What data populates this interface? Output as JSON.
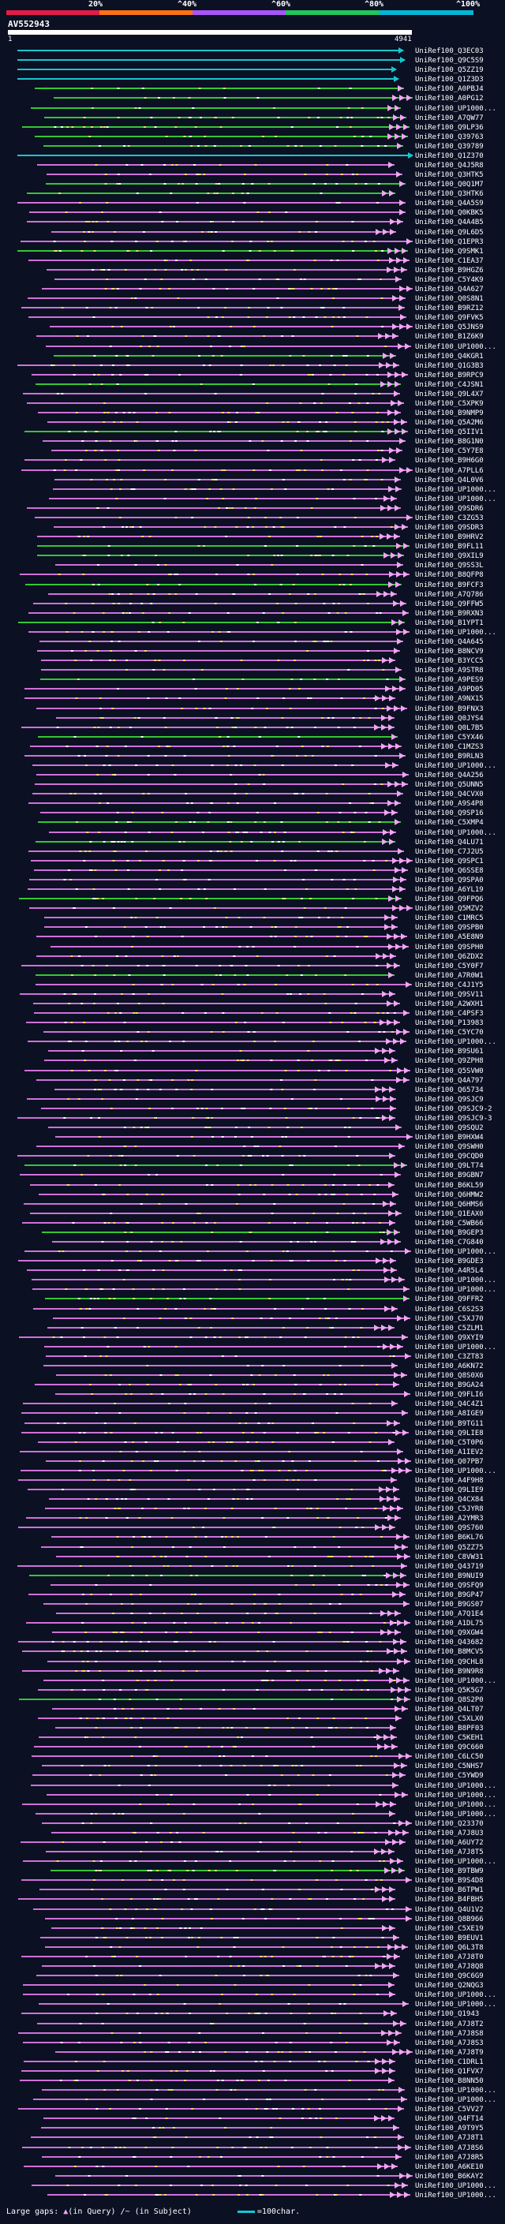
{
  "header": {
    "query_id": "AV552943",
    "start": "1",
    "end": "4941",
    "scale_labels": [
      "20%",
      "^40%",
      "^60%",
      "^80%",
      "^100%"
    ],
    "scale_colors": [
      "#e11d48",
      "#f97316",
      "#a855f7",
      "#22c55e",
      "#06b6d4"
    ]
  },
  "colors": {
    "cyan": "#17c6cf",
    "green": "#34c634",
    "magenta": "#d070d8",
    "orange": "#f59e0b",
    "yellow": "#e9e65b",
    "pink": "#f0a6f0"
  },
  "hits": [
    {
      "name": "UniRef100_Q3EC03",
      "color": "cyan"
    },
    {
      "name": "UniRef100_Q9C5S9",
      "color": "cyan"
    },
    {
      "name": "UniRef100_Q5ZZ19",
      "color": "cyan"
    },
    {
      "name": "UniRef100_Q1Z3D3",
      "color": "cyan"
    },
    {
      "name": "UniRef100_A0PBJ4",
      "color": "green"
    },
    {
      "name": "UniRef100_A0PG12",
      "color": "green"
    },
    {
      "name": "UniRef100_UP1000...",
      "color": "green"
    },
    {
      "name": "UniRef100_A7QW77",
      "color": "green"
    },
    {
      "name": "UniRef100_Q9LP36",
      "color": "green"
    },
    {
      "name": "UniRef100_Q39763",
      "color": "green"
    },
    {
      "name": "UniRef100_Q39789",
      "color": "green"
    },
    {
      "name": "UniRef100_Q1Z370",
      "color": "cyan"
    },
    {
      "name": "UniRef100_Q4J5R8",
      "color": "magenta"
    },
    {
      "name": "UniRef100_Q3HTK5",
      "color": "magenta"
    },
    {
      "name": "UniRef100_Q0Q1M7",
      "color": "green"
    },
    {
      "name": "UniRef100_Q3HTK6",
      "color": "green"
    },
    {
      "name": "UniRef100_Q4A5S9",
      "color": "magenta"
    },
    {
      "name": "UniRef100_Q0KBK5",
      "color": "magenta"
    },
    {
      "name": "UniRef100_Q4A4B5",
      "color": "magenta"
    },
    {
      "name": "UniRef100_Q9L6D5",
      "color": "magenta"
    },
    {
      "name": "UniRef100_Q1EPR3",
      "color": "magenta"
    },
    {
      "name": "UniRef100_Q9SMK1",
      "color": "green"
    },
    {
      "name": "UniRef100_C1EA37",
      "color": "magenta"
    },
    {
      "name": "UniRef100_B9HGZ6",
      "color": "magenta"
    },
    {
      "name": "UniRef100_C5Y4K9",
      "color": "magenta"
    },
    {
      "name": "UniRef100_Q4A627",
      "color": "magenta"
    },
    {
      "name": "UniRef100_Q0S8N1",
      "color": "magenta"
    },
    {
      "name": "UniRef100_B9RZ12",
      "color": "magenta"
    },
    {
      "name": "UniRef100_Q9FVK5",
      "color": "magenta"
    },
    {
      "name": "UniRef100_Q5JNS9",
      "color": "magenta"
    },
    {
      "name": "UniRef100_B1Z6K9",
      "color": "magenta"
    },
    {
      "name": "UniRef100_UP1000...",
      "color": "magenta"
    },
    {
      "name": "UniRef100_Q4KGR1",
      "color": "green"
    },
    {
      "name": "UniRef100_Q1G3B3",
      "color": "magenta"
    },
    {
      "name": "UniRef100_B9RPC9",
      "color": "magenta"
    },
    {
      "name": "UniRef100_C4JSN1",
      "color": "green"
    },
    {
      "name": "UniRef100_Q9L4X7",
      "color": "magenta"
    },
    {
      "name": "UniRef100_C5XPK9",
      "color": "magenta"
    },
    {
      "name": "UniRef100_B9NMP9",
      "color": "magenta"
    },
    {
      "name": "UniRef100_Q5A2M6",
      "color": "magenta"
    },
    {
      "name": "UniRef100_Q5IIV1",
      "color": "green"
    },
    {
      "name": "UniRef100_B8G1N0",
      "color": "magenta"
    },
    {
      "name": "UniRef100_C5Y7E8",
      "color": "magenta"
    },
    {
      "name": "UniRef100_B9H6G0",
      "color": "magenta"
    },
    {
      "name": "UniRef100_A7PLL6",
      "color": "magenta"
    },
    {
      "name": "UniRef100_Q4L0V6",
      "color": "magenta"
    },
    {
      "name": "UniRef100_UP1000...",
      "color": "magenta"
    },
    {
      "name": "UniRef100_UP1000...",
      "color": "magenta"
    },
    {
      "name": "UniRef100_Q9SDR6",
      "color": "magenta"
    },
    {
      "name": "UniRef100_C3ZG53",
      "color": "magenta"
    },
    {
      "name": "UniRef100_Q9SDR3",
      "color": "magenta"
    },
    {
      "name": "UniRef100_B9HRV2",
      "color": "magenta"
    },
    {
      "name": "UniRef100_B9FL11",
      "color": "green"
    },
    {
      "name": "UniRef100_Q9XIL9",
      "color": "green"
    },
    {
      "name": "UniRef100_Q9SS3L",
      "color": "magenta"
    },
    {
      "name": "UniRef100_B8QFP8",
      "color": "magenta"
    },
    {
      "name": "UniRef100_B9FCF3",
      "color": "green"
    },
    {
      "name": "UniRef100_A7Q786",
      "color": "magenta"
    },
    {
      "name": "UniRef100_Q9FFW5",
      "color": "magenta"
    },
    {
      "name": "UniRef100_B9RXN3",
      "color": "magenta"
    },
    {
      "name": "UniRef100_B1YPT1",
      "color": "green"
    },
    {
      "name": "UniRef100_UP1000...",
      "color": "magenta"
    },
    {
      "name": "UniRef100_Q4A645",
      "color": "magenta"
    },
    {
      "name": "UniRef100_B8NCV9",
      "color": "magenta"
    },
    {
      "name": "UniRef100_B3YCC5",
      "color": "magenta"
    },
    {
      "name": "UniRef100_A9STR8",
      "color": "magenta"
    },
    {
      "name": "UniRef100_A9PES9",
      "color": "green"
    },
    {
      "name": "UniRef100_A9PD05",
      "color": "magenta"
    },
    {
      "name": "UniRef100_A9NX15",
      "color": "magenta"
    },
    {
      "name": "UniRef100_B9FNX3",
      "color": "magenta"
    },
    {
      "name": "UniRef100_Q0JYS4",
      "color": "magenta"
    },
    {
      "name": "UniRef100_Q0L7B5",
      "color": "magenta"
    },
    {
      "name": "UniRef100_C5YX46",
      "color": "green"
    },
    {
      "name": "UniRef100_C1MZS3",
      "color": "magenta"
    },
    {
      "name": "UniRef100_B9RLN3",
      "color": "magenta"
    },
    {
      "name": "UniRef100_UP1000...",
      "color": "magenta"
    },
    {
      "name": "UniRef100_Q4A256",
      "color": "magenta"
    },
    {
      "name": "UniRef100_Q5UNN5",
      "color": "magenta"
    },
    {
      "name": "UniRef100_Q4CVX0",
      "color": "magenta"
    },
    {
      "name": "UniRef100_A9S4P8",
      "color": "magenta"
    },
    {
      "name": "UniRef100_Q9SP16",
      "color": "magenta"
    },
    {
      "name": "UniRef100_C5XMP4",
      "color": "green"
    },
    {
      "name": "UniRef100_UP1000...",
      "color": "magenta"
    },
    {
      "name": "UniRef100_Q4LU71",
      "color": "green"
    },
    {
      "name": "UniRef100_C7J2U5",
      "color": "magenta"
    },
    {
      "name": "UniRef100_Q9SPC1",
      "color": "magenta"
    },
    {
      "name": "UniRef100_Q6SSE8",
      "color": "magenta"
    },
    {
      "name": "UniRef100_Q9SPA0",
      "color": "magenta"
    },
    {
      "name": "UniRef100_A6YL19",
      "color": "magenta"
    },
    {
      "name": "UniRef100_Q9FPQ6",
      "color": "green"
    },
    {
      "name": "UniRef100_Q5MZV2",
      "color": "magenta"
    },
    {
      "name": "UniRef100_C1MRC5",
      "color": "magenta"
    },
    {
      "name": "UniRef100_Q9SPB0",
      "color": "magenta"
    },
    {
      "name": "UniRef100_A5E8N9",
      "color": "magenta"
    },
    {
      "name": "UniRef100_Q9SPH0",
      "color": "magenta"
    },
    {
      "name": "UniRef100_Q6ZDX2",
      "color": "magenta"
    },
    {
      "name": "UniRef100_C5Y0F7",
      "color": "magenta"
    },
    {
      "name": "UniRef100_A7R0W1",
      "color": "green"
    },
    {
      "name": "UniRef100_C4J1Y5",
      "color": "magenta"
    },
    {
      "name": "UniRef100_Q9SV11",
      "color": "magenta"
    },
    {
      "name": "UniRef100_A2WXH1",
      "color": "magenta"
    },
    {
      "name": "UniRef100_C4PSF3",
      "color": "magenta"
    },
    {
      "name": "UniRef100_P13983",
      "color": "magenta"
    },
    {
      "name": "UniRef100_C5YC70",
      "color": "magenta"
    },
    {
      "name": "UniRef100_UP1000...",
      "color": "magenta"
    },
    {
      "name": "UniRef100_B9SU61",
      "color": "magenta"
    },
    {
      "name": "UniRef100_Q9ZPH8",
      "color": "magenta"
    },
    {
      "name": "UniRef100_Q5SVW0",
      "color": "magenta"
    },
    {
      "name": "UniRef100_Q4A797",
      "color": "magenta"
    },
    {
      "name": "UniRef100_Q65734",
      "color": "magenta"
    },
    {
      "name": "UniRef100_Q9SJC9",
      "color": "magenta"
    },
    {
      "name": "UniRef100_Q9SJC9-2",
      "color": "magenta"
    },
    {
      "name": "UniRef100_Q9SJC9-3",
      "color": "magenta"
    },
    {
      "name": "UniRef100_Q9SQU2",
      "color": "magenta"
    },
    {
      "name": "UniRef100_B9HXW4",
      "color": "magenta"
    },
    {
      "name": "UniRef100_Q9SWH0",
      "color": "magenta"
    },
    {
      "name": "UniRef100_Q9CQD0",
      "color": "magenta"
    },
    {
      "name": "UniRef100_Q9LT74",
      "color": "green"
    },
    {
      "name": "UniRef100_B9GBN7",
      "color": "magenta"
    },
    {
      "name": "UniRef100_B6KL59",
      "color": "magenta"
    },
    {
      "name": "UniRef100_Q6HMW2",
      "color": "magenta"
    },
    {
      "name": "UniRef100_Q6HMS6",
      "color": "magenta"
    },
    {
      "name": "UniRef100_Q1EAX0",
      "color": "magenta"
    },
    {
      "name": "UniRef100_C5WB66",
      "color": "magenta"
    },
    {
      "name": "UniRef100_B9GEP3",
      "color": "green"
    },
    {
      "name": "UniRef100_C7G840",
      "color": "magenta"
    },
    {
      "name": "UniRef100_UP1000...",
      "color": "magenta"
    },
    {
      "name": "UniRef100_B9GDE3",
      "color": "magenta"
    },
    {
      "name": "UniRef100_A4R5L4",
      "color": "magenta"
    },
    {
      "name": "UniRef100_UP1000...",
      "color": "magenta"
    },
    {
      "name": "UniRef100_UP1000...",
      "color": "magenta"
    },
    {
      "name": "UniRef100_Q9FFR2",
      "color": "green"
    },
    {
      "name": "UniRef100_C6S2S3",
      "color": "magenta"
    },
    {
      "name": "UniRef100_C5XJ70",
      "color": "magenta"
    },
    {
      "name": "UniRef100_C5ZLM1",
      "color": "magenta"
    },
    {
      "name": "UniRef100_Q9XYI9",
      "color": "magenta"
    },
    {
      "name": "UniRef100_UP1000...",
      "color": "magenta"
    },
    {
      "name": "UniRef100_C3ZT83",
      "color": "magenta"
    },
    {
      "name": "UniRef100_A6KN72",
      "color": "magenta"
    },
    {
      "name": "UniRef100_Q8S0X6",
      "color": "magenta"
    },
    {
      "name": "UniRef100_B9GA24",
      "color": "magenta"
    },
    {
      "name": "UniRef100_Q9FLI6",
      "color": "magenta"
    },
    {
      "name": "UniRef100_Q4C4Z1",
      "color": "magenta"
    },
    {
      "name": "UniRef100_A8IGE9",
      "color": "magenta"
    },
    {
      "name": "UniRef100_B9TG11",
      "color": "magenta"
    },
    {
      "name": "UniRef100_Q9LIE8",
      "color": "magenta"
    },
    {
      "name": "UniRef100_C5T0P6",
      "color": "magenta"
    },
    {
      "name": "UniRef100_A1IEV2",
      "color": "magenta"
    },
    {
      "name": "UniRef100_Q07PB7",
      "color": "magenta"
    },
    {
      "name": "UniRef100_UP1000...",
      "color": "magenta"
    },
    {
      "name": "UniRef100_A4F9H8",
      "color": "magenta"
    },
    {
      "name": "UniRef100_Q9LIE9",
      "color": "magenta"
    },
    {
      "name": "UniRef100_Q4CX84",
      "color": "magenta"
    },
    {
      "name": "UniRef100_C5JYR8",
      "color": "magenta"
    },
    {
      "name": "UniRef100_A2YMR3",
      "color": "magenta"
    },
    {
      "name": "UniRef100_Q9S760",
      "color": "magenta"
    },
    {
      "name": "UniRef100_B6KL76",
      "color": "magenta"
    },
    {
      "name": "UniRef100_Q5ZZ75",
      "color": "magenta"
    },
    {
      "name": "UniRef100_C8VW31",
      "color": "magenta"
    },
    {
      "name": "UniRef100_Q43719",
      "color": "magenta"
    },
    {
      "name": "UniRef100_B9NUI9",
      "color": "green"
    },
    {
      "name": "UniRef100_Q9SFQ9",
      "color": "magenta"
    },
    {
      "name": "UniRef100_B9GP47",
      "color": "magenta"
    },
    {
      "name": "UniRef100_B9GS07",
      "color": "magenta"
    },
    {
      "name": "UniRef100_A7Q1E4",
      "color": "magenta"
    },
    {
      "name": "UniRef100_A1DL75",
      "color": "magenta"
    },
    {
      "name": "UniRef100_Q9XGW4",
      "color": "magenta"
    },
    {
      "name": "UniRef100_Q43682",
      "color": "magenta"
    },
    {
      "name": "UniRef100_B8MCV5",
      "color": "magenta"
    },
    {
      "name": "UniRef100_Q9CHL8",
      "color": "magenta"
    },
    {
      "name": "UniRef100_B9N9R8",
      "color": "magenta"
    },
    {
      "name": "UniRef100_UP1000...",
      "color": "magenta"
    },
    {
      "name": "UniRef100_Q5K5G7",
      "color": "magenta"
    },
    {
      "name": "UniRef100_Q8S2P0",
      "color": "green"
    },
    {
      "name": "UniRef100_Q4LT07",
      "color": "magenta"
    },
    {
      "name": "UniRef100_C5XLX0",
      "color": "magenta"
    },
    {
      "name": "UniRef100_B8PF03",
      "color": "magenta"
    },
    {
      "name": "UniRef100_C5KEH1",
      "color": "magenta"
    },
    {
      "name": "UniRef100_Q9C660",
      "color": "magenta"
    },
    {
      "name": "UniRef100_C6LC50",
      "color": "magenta"
    },
    {
      "name": "UniRef100_C5NHS7",
      "color": "magenta"
    },
    {
      "name": "UniRef100_C5YWD9",
      "color": "magenta"
    },
    {
      "name": "UniRef100_UP1000...",
      "color": "magenta"
    },
    {
      "name": "UniRef100_UP1000...",
      "color": "magenta"
    },
    {
      "name": "UniRef100_UP1000...",
      "color": "magenta"
    },
    {
      "name": "UniRef100_UP1000...",
      "color": "magenta"
    },
    {
      "name": "UniRef100_Q23370",
      "color": "magenta"
    },
    {
      "name": "UniRef100_A7J8U3",
      "color": "magenta"
    },
    {
      "name": "UniRef100_A6UY72",
      "color": "magenta"
    },
    {
      "name": "UniRef100_A7J8T5",
      "color": "magenta"
    },
    {
      "name": "UniRef100_UP1000...",
      "color": "magenta"
    },
    {
      "name": "UniRef100_B9TBW9",
      "color": "green"
    },
    {
      "name": "UniRef100_B9S4D8",
      "color": "magenta"
    },
    {
      "name": "UniRef100_B6TPW1",
      "color": "magenta"
    },
    {
      "name": "UniRef100_B4FBH5",
      "color": "magenta"
    },
    {
      "name": "UniRef100_Q4U1V2",
      "color": "magenta"
    },
    {
      "name": "UniRef100_Q8B966",
      "color": "magenta"
    },
    {
      "name": "UniRef100_C5XE19",
      "color": "magenta"
    },
    {
      "name": "UniRef100_B9EUV1",
      "color": "magenta"
    },
    {
      "name": "UniRef100_Q6L3T8",
      "color": "magenta"
    },
    {
      "name": "UniRef100_A7J8T0",
      "color": "magenta"
    },
    {
      "name": "UniRef100_A7J8Q8",
      "color": "magenta"
    },
    {
      "name": "UniRef100_Q9C6G9",
      "color": "magenta"
    },
    {
      "name": "UniRef100_Q2NQG3",
      "color": "magenta"
    },
    {
      "name": "UniRef100_UP1000...",
      "color": "magenta"
    },
    {
      "name": "UniRef100_UP1000...",
      "color": "magenta"
    },
    {
      "name": "UniRef100_Q1943",
      "color": "magenta"
    },
    {
      "name": "UniRef100_A7J8T2",
      "color": "magenta"
    },
    {
      "name": "UniRef100_A7J8S8",
      "color": "magenta"
    },
    {
      "name": "UniRef100_A7J8S3",
      "color": "magenta"
    },
    {
      "name": "UniRef100_A7J8T9",
      "color": "magenta"
    },
    {
      "name": "UniRef100_C1DRL1",
      "color": "magenta"
    },
    {
      "name": "UniRef100_Q1FVX7",
      "color": "magenta"
    },
    {
      "name": "UniRef100_B8NN50",
      "color": "magenta"
    },
    {
      "name": "UniRef100_UP1000...",
      "color": "magenta"
    },
    {
      "name": "UniRef100_UP1000...",
      "color": "magenta"
    },
    {
      "name": "UniRef100_C5VV27",
      "color": "magenta"
    },
    {
      "name": "UniRef100_Q4FT14",
      "color": "magenta"
    },
    {
      "name": "UniRef100_A9T9Y5",
      "color": "magenta"
    },
    {
      "name": "UniRef100_A7J8T1",
      "color": "magenta"
    },
    {
      "name": "UniRef100_A7J8S6",
      "color": "magenta"
    },
    {
      "name": "UniRef100_A7J8R5",
      "color": "magenta"
    },
    {
      "name": "UniRef100_A6KE10",
      "color": "magenta"
    },
    {
      "name": "UniRef100_B6KAY2",
      "color": "magenta"
    },
    {
      "name": "UniRef100_UP1000...",
      "color": "magenta"
    },
    {
      "name": "UniRef100_UP1000...",
      "color": "magenta"
    }
  ],
  "footer": {
    "large_gaps_label": "Large gaps:",
    "query_gap_text": "(in Query)",
    "subject_gap_text": "/~ (in Subject)",
    "scale_text": "=100char."
  }
}
